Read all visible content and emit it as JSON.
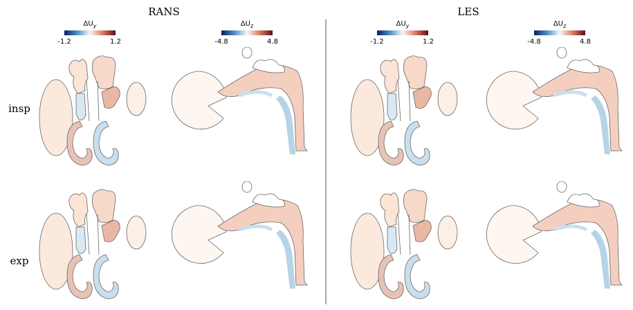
{
  "columns": [
    {
      "title": "RANS",
      "colorbars": [
        {
          "label": "ΔU",
          "subscript": "y",
          "min": "-1.2",
          "max": "1.2"
        },
        {
          "label": "ΔU",
          "subscript": "z",
          "min": "-4.8",
          "max": "4.8"
        }
      ]
    },
    {
      "title": "LES",
      "colorbars": [
        {
          "label": "ΔU",
          "subscript": "y",
          "min": "-1.2",
          "max": "1.2"
        },
        {
          "label": "ΔU",
          "subscript": "z",
          "min": "-4.8",
          "max": "4.8"
        }
      ]
    }
  ],
  "rows": [
    "insp",
    "exp"
  ]
}
